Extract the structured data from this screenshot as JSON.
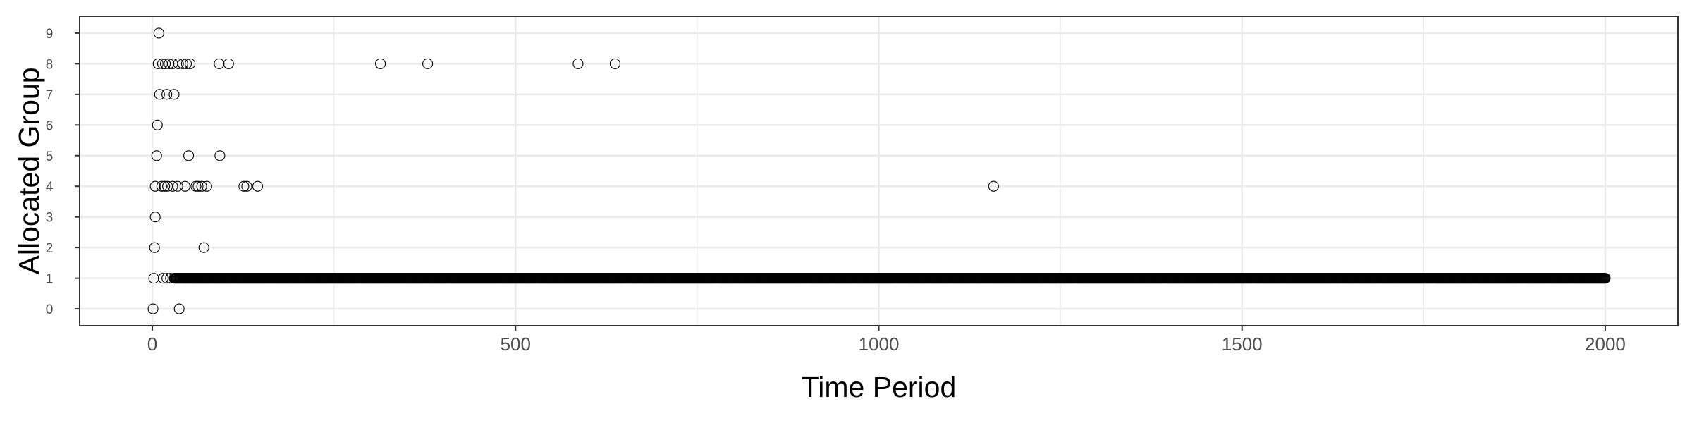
{
  "chart_data": {
    "type": "scatter",
    "title": "",
    "xlabel": "Time Period",
    "ylabel": "Allocated Group",
    "xlim": [
      -100,
      2100
    ],
    "ylim": [
      -0.55,
      9.55
    ],
    "x_ticks": [
      0,
      500,
      1000,
      1500,
      2000
    ],
    "y_ticks": [
      0,
      1,
      2,
      3,
      4,
      5,
      6,
      7,
      8,
      9
    ],
    "x_tick_labels": [
      "0",
      "500",
      "1000",
      "1500",
      "2000"
    ],
    "y_tick_labels": [
      "0",
      "1",
      "2",
      "3",
      "4",
      "5",
      "6",
      "7",
      "8",
      "9"
    ],
    "grid": true,
    "theme": "black-and-white",
    "marker": "open-circle",
    "colors": {
      "points": "#000000",
      "grid": "#ebebeb",
      "panel_border": "#333333"
    },
    "series": [
      {
        "values": [
          [
            1,
            0
          ],
          [
            37,
            0
          ],
          [
            2,
            1
          ],
          [
            15,
            1
          ],
          [
            20,
            1
          ],
          [
            25,
            1
          ],
          [
            3,
            2
          ],
          [
            71,
            2
          ],
          [
            4,
            3
          ],
          [
            4,
            4
          ],
          [
            13,
            4
          ],
          [
            17,
            4
          ],
          [
            21,
            4
          ],
          [
            28,
            4
          ],
          [
            35,
            4
          ],
          [
            45,
            4
          ],
          [
            60,
            4
          ],
          [
            63,
            4
          ],
          [
            68,
            4
          ],
          [
            75,
            4
          ],
          [
            126,
            4
          ],
          [
            130,
            4
          ],
          [
            145,
            4
          ],
          [
            1158,
            4
          ],
          [
            6,
            5
          ],
          [
            50,
            5
          ],
          [
            93,
            5
          ],
          [
            7,
            6
          ],
          [
            10,
            7
          ],
          [
            20,
            7
          ],
          [
            30,
            7
          ],
          [
            8,
            8
          ],
          [
            14,
            8
          ],
          [
            18,
            8
          ],
          [
            23,
            8
          ],
          [
            28,
            8
          ],
          [
            36,
            8
          ],
          [
            42,
            8
          ],
          [
            47,
            8
          ],
          [
            52,
            8
          ],
          [
            92,
            8
          ],
          [
            105,
            8
          ],
          [
            314,
            8
          ],
          [
            379,
            8
          ],
          [
            586,
            8
          ],
          [
            637,
            8
          ],
          [
            9,
            9
          ]
        ],
        "dense_run": {
          "y": 1,
          "x_from": 30,
          "x_to": 2000,
          "step": 1
        }
      }
    ]
  }
}
